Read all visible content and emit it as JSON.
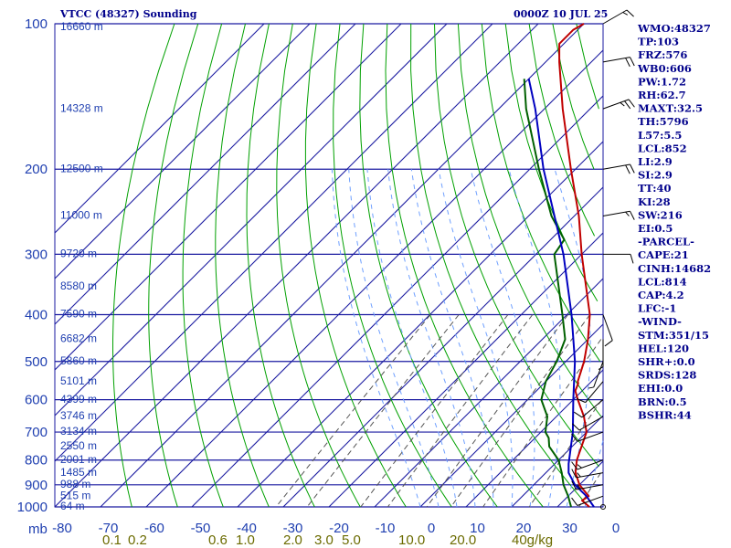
{
  "header": {
    "station": "VTCC (48327) Sounding",
    "time": "0000Z 10 JUL 25"
  },
  "indices": [
    "WMO:48327",
    "TP:103",
    "FRZ:576",
    "WB0:606",
    "PW:1.72",
    "RH:62.7",
    "MAXT:32.5",
    "TH:5796",
    "L57:5.5",
    "LCL:852",
    "LI:2.9",
    "SI:2.9",
    "TT:40",
    "KI:28",
    "SW:216",
    "EI:0.5",
    "-PARCEL-",
    "CAPE:21",
    "CINH:14682",
    "LCL:814",
    "CAP:4.2",
    "LFC:-1",
    "-WIND-",
    "STM:351/15",
    "HEL:120",
    "SHR+:0.0",
    "SRDS:128",
    "EHI:0.0",
    "BRN:0.5",
    "BSHR:44"
  ],
  "colors": {
    "grid": "#1a1aa0",
    "temperature": "#c00000",
    "dewpoint": "#006000",
    "parcel": "#0000c0",
    "dry_adiabat": "#00a000",
    "moist_adiabat": "#6fa0ff",
    "mixing_ratio": "#555555",
    "indices_text": "#00008b"
  },
  "chart_data": {
    "type": "line",
    "skew": true,
    "title": "",
    "xlabel": "",
    "ylabel": "mb",
    "xlim": [
      -80,
      0
    ],
    "ylim": [
      1000,
      100
    ],
    "pressure_ticks": [
      100,
      200,
      300,
      400,
      500,
      600,
      700,
      800,
      900,
      1000
    ],
    "temperature_ticks": [
      "-80",
      "-70",
      "-60",
      "-50",
      "-40",
      "-30",
      "-20",
      "-10",
      "0",
      "10",
      "20",
      "30",
      "0"
    ],
    "mixing_ratio_labels": [
      "0.1",
      "0.2",
      "0.6",
      "1.0",
      "2.0",
      "3.0",
      "5.0",
      "10.0",
      "20.0",
      "40g/kg"
    ],
    "height_labels": [
      {
        "p": 100,
        "label": "16660 m"
      },
      {
        "p": 150,
        "label": "14328 m"
      },
      {
        "p": 200,
        "label": "12500 m"
      },
      {
        "p": 250,
        "label": "11000 m"
      },
      {
        "p": 300,
        "label": "9720 m"
      },
      {
        "p": 350,
        "label": "8580 m"
      },
      {
        "p": 400,
        "label": "7590 m"
      },
      {
        "p": 450,
        "label": "6682 m"
      },
      {
        "p": 500,
        "label": "5860 m"
      },
      {
        "p": 550,
        "label": "5101 m"
      },
      {
        "p": 600,
        "label": "4399 m"
      },
      {
        "p": 650,
        "label": "3746 m"
      },
      {
        "p": 700,
        "label": "3134 m"
      },
      {
        "p": 750,
        "label": "2550 m"
      },
      {
        "p": 800,
        "label": "2001 m"
      },
      {
        "p": 850,
        "label": "1485 m"
      },
      {
        "p": 900,
        "label": "988 m"
      },
      {
        "p": 950,
        "label": "515 m"
      },
      {
        "p": 1000,
        "label": "64 m"
      }
    ],
    "series": [
      {
        "key": "temperature",
        "points": [
          {
            "p": 1000,
            "t": 27
          },
          {
            "p": 970,
            "t": 24
          },
          {
            "p": 950,
            "t": 24.5
          },
          {
            "p": 900,
            "t": 20
          },
          {
            "p": 850,
            "t": 16.5
          },
          {
            "p": 800,
            "t": 14
          },
          {
            "p": 700,
            "t": 10
          },
          {
            "p": 650,
            "t": 6
          },
          {
            "p": 600,
            "t": 1
          },
          {
            "p": 575,
            "t": -1.5
          },
          {
            "p": 555,
            "t": -2.5
          },
          {
            "p": 550,
            "t": -3
          },
          {
            "p": 500,
            "t": -6
          },
          {
            "p": 450,
            "t": -10
          },
          {
            "p": 400,
            "t": -15
          },
          {
            "p": 300,
            "t": -30
          },
          {
            "p": 250,
            "t": -39
          },
          {
            "p": 200,
            "t": -51
          },
          {
            "p": 150,
            "t": -66
          },
          {
            "p": 120,
            "t": -77
          },
          {
            "p": 110,
            "t": -81
          },
          {
            "p": 103,
            "t": -81
          },
          {
            "p": 100,
            "t": -80
          }
        ]
      },
      {
        "key": "dewpoint",
        "points": [
          {
            "p": 1000,
            "t": 23
          },
          {
            "p": 950,
            "t": 20
          },
          {
            "p": 900,
            "t": 16.5
          },
          {
            "p": 850,
            "t": 13.5
          },
          {
            "p": 800,
            "t": 10
          },
          {
            "p": 750,
            "t": 5
          },
          {
            "p": 720,
            "t": 3
          },
          {
            "p": 700,
            "t": 1
          },
          {
            "p": 650,
            "t": -2
          },
          {
            "p": 600,
            "t": -7
          },
          {
            "p": 550,
            "t": -10
          },
          {
            "p": 500,
            "t": -12
          },
          {
            "p": 450,
            "t": -15
          },
          {
            "p": 400,
            "t": -21
          },
          {
            "p": 300,
            "t": -36
          },
          {
            "p": 280,
            "t": -37
          },
          {
            "p": 250,
            "t": -45
          },
          {
            "p": 200,
            "t": -58
          },
          {
            "p": 150,
            "t": -74
          },
          {
            "p": 130,
            "t": -81
          }
        ]
      },
      {
        "key": "parcel",
        "points": [
          {
            "p": 1000,
            "t": 28
          },
          {
            "p": 950,
            "t": 24
          },
          {
            "p": 900,
            "t": 19
          },
          {
            "p": 850,
            "t": 15
          },
          {
            "p": 814,
            "t": 13
          },
          {
            "p": 700,
            "t": 7
          },
          {
            "p": 600,
            "t": 0
          },
          {
            "p": 500,
            "t": -8
          },
          {
            "p": 400,
            "t": -19
          },
          {
            "p": 300,
            "t": -34
          },
          {
            "p": 200,
            "t": -57
          },
          {
            "p": 150,
            "t": -72
          },
          {
            "p": 130,
            "t": -80
          }
        ]
      }
    ],
    "winds": [
      {
        "p": 1000,
        "dir": 180,
        "spd": 0
      },
      {
        "p": 950,
        "dir": 250,
        "spd": 10
      },
      {
        "p": 900,
        "dir": 260,
        "spd": 15
      },
      {
        "p": 850,
        "dir": 260,
        "spd": 15
      },
      {
        "p": 800,
        "dir": 250,
        "spd": 15
      },
      {
        "p": 700,
        "dir": 250,
        "spd": 10
      },
      {
        "p": 650,
        "dir": 240,
        "spd": 10
      },
      {
        "p": 600,
        "dir": 230,
        "spd": 10
      },
      {
        "p": 550,
        "dir": 220,
        "spd": 10
      },
      {
        "p": 500,
        "dir": 200,
        "spd": 5
      },
      {
        "p": 450,
        "dir": 180,
        "spd": 5
      },
      {
        "p": 400,
        "dir": 160,
        "spd": 10
      },
      {
        "p": 300,
        "dir": 90,
        "spd": 10
      },
      {
        "p": 250,
        "dir": 80,
        "spd": 15
      },
      {
        "p": 200,
        "dir": 80,
        "spd": 20
      },
      {
        "p": 150,
        "dir": 70,
        "spd": 25
      },
      {
        "p": 120,
        "dir": 80,
        "spd": 20
      },
      {
        "p": 100,
        "dir": 60,
        "spd": 15
      }
    ]
  }
}
